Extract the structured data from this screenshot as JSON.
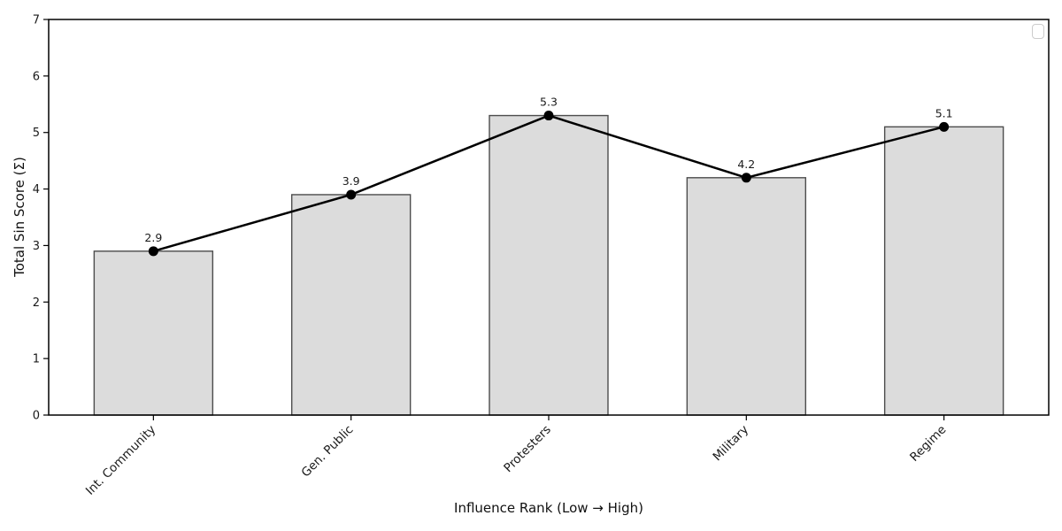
{
  "chart_data": {
    "type": "bar-line",
    "categories": [
      "Int. Community",
      "Gen. Public",
      "Protesters",
      "Military",
      "Regime"
    ],
    "series": [
      {
        "name": "total-sin-bars",
        "type": "bar",
        "values": [
          2.9,
          3.9,
          5.3,
          4.2,
          5.1
        ]
      },
      {
        "name": "total-sin-line",
        "type": "line",
        "values": [
          2.9,
          3.9,
          5.3,
          4.2,
          5.1
        ]
      }
    ],
    "point_labels": [
      "2.9",
      "3.9",
      "5.3",
      "4.2",
      "5.1"
    ],
    "title": "",
    "xlabel": "Influence Rank (Low → High)",
    "ylabel": "Total Sin Score (Σ)",
    "ylim": [
      0,
      7
    ],
    "yticks": [
      0,
      1,
      2,
      3,
      4,
      5,
      6,
      7
    ],
    "xtick_rotation_deg": 45,
    "grid": false,
    "legend": {
      "visible": true,
      "entries": []
    },
    "colors": {
      "background": "#ffffff",
      "bar_fill": "#dcdcdc",
      "bar_edge": "#4d4d4d",
      "line": "#000000",
      "marker": "#000000",
      "axis": "#000000",
      "text": "#1a1a1a"
    }
  }
}
